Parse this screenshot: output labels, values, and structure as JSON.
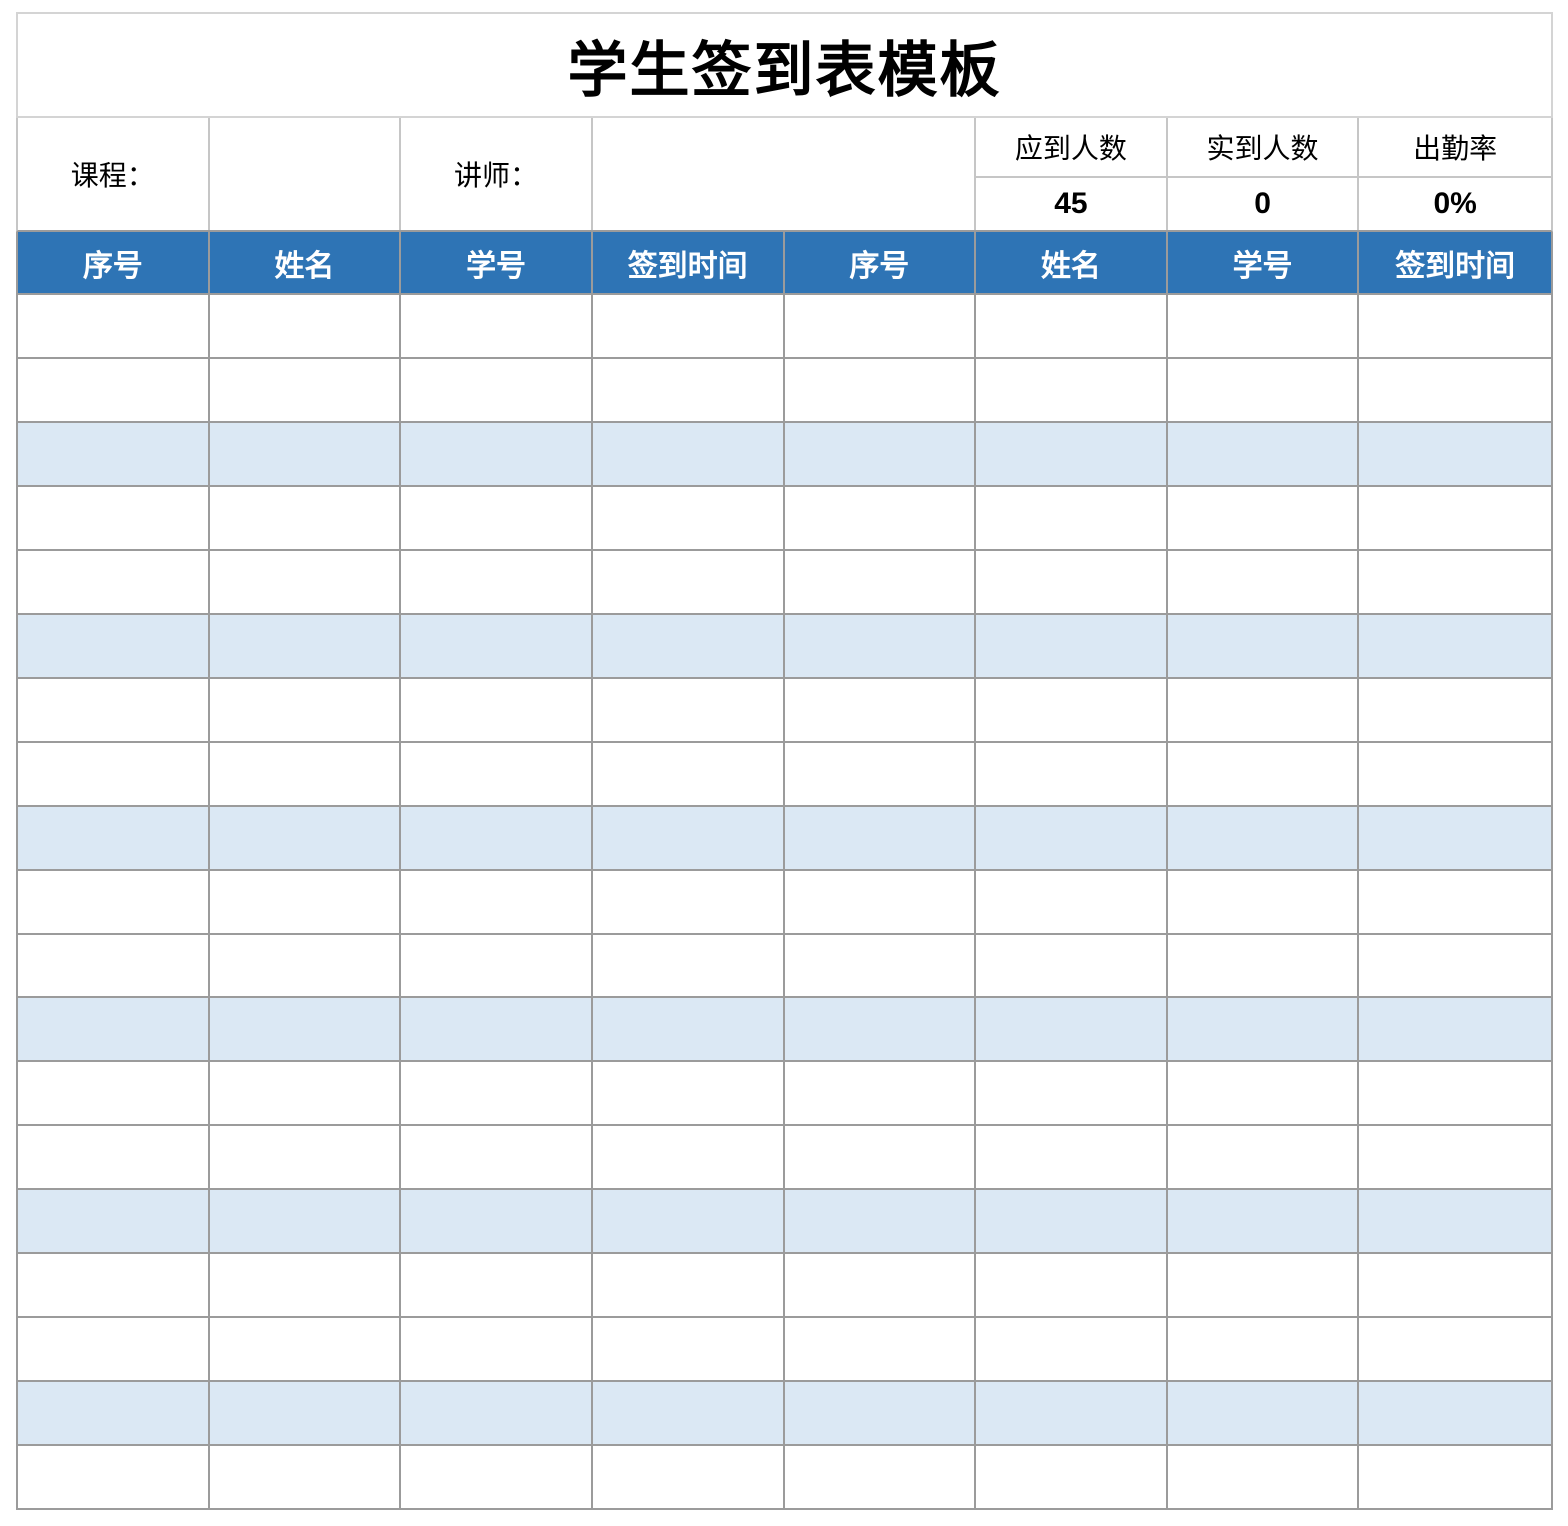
{
  "title": "学生签到表模板",
  "colors": {
    "header_blue": "#2e74b5",
    "stripe_blue": "#dbe8f4",
    "grid_gray": "#9b9b9b",
    "header_text": "#ffffff"
  },
  "info": {
    "course_label": "课程：",
    "course_value": "",
    "instructor_label": "讲师：",
    "instructor_value": "",
    "stats": [
      {
        "label": "应到人数",
        "value": "45"
      },
      {
        "label": "实到人数",
        "value": "0"
      },
      {
        "label": "出勤率",
        "value": "0%"
      }
    ]
  },
  "table": {
    "header": [
      "序号",
      "姓名",
      "学号",
      "签到时间",
      "序号",
      "姓名",
      "学号",
      "签到时间"
    ],
    "columns": 8,
    "row_count": 19,
    "striped_rows": [
      3,
      6,
      9,
      12,
      15,
      18
    ],
    "cell_value": ""
  }
}
